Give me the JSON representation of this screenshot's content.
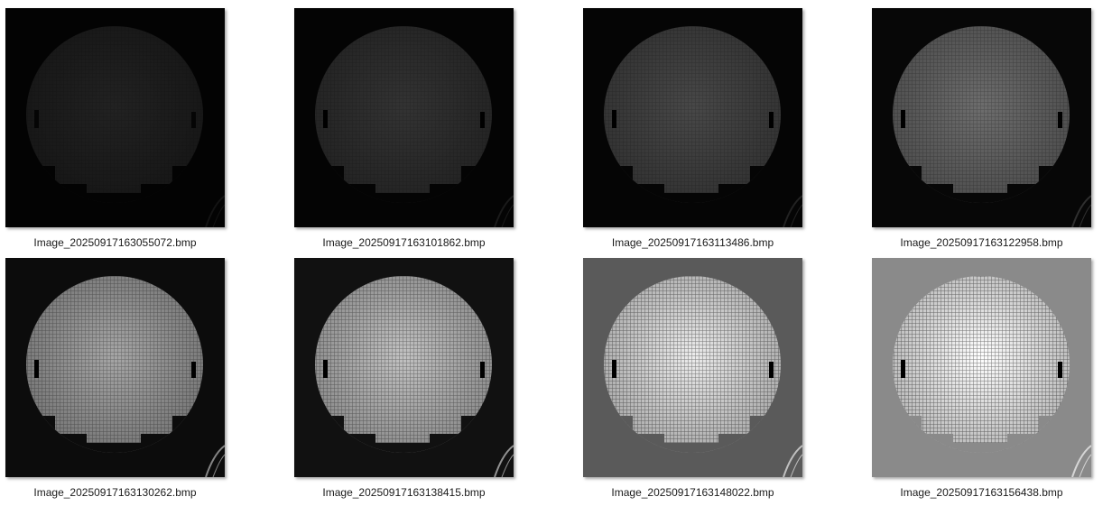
{
  "files": [
    {
      "filename": "Image_20250917163055072.bmp",
      "brightness": 0.06,
      "bg": "#030303"
    },
    {
      "filename": "Image_20250917163101862.bmp",
      "brightness": 0.13,
      "bg": "#040404"
    },
    {
      "filename": "Image_20250917163113486.bmp",
      "brightness": 0.22,
      "bg": "#050505"
    },
    {
      "filename": "Image_20250917163122958.bmp",
      "brightness": 0.38,
      "bg": "#070707"
    },
    {
      "filename": "Image_20250917163130262.bmp",
      "brightness": 0.62,
      "bg": "#0c0c0c"
    },
    {
      "filename": "Image_20250917163138415.bmp",
      "brightness": 0.74,
      "bg": "#111111"
    },
    {
      "filename": "Image_20250917163148022.bmp",
      "brightness": 0.92,
      "bg": "#5a5a5a"
    },
    {
      "filename": "Image_20250917163156438.bmp",
      "brightness": 1.0,
      "bg": "#8a8a8a"
    }
  ]
}
